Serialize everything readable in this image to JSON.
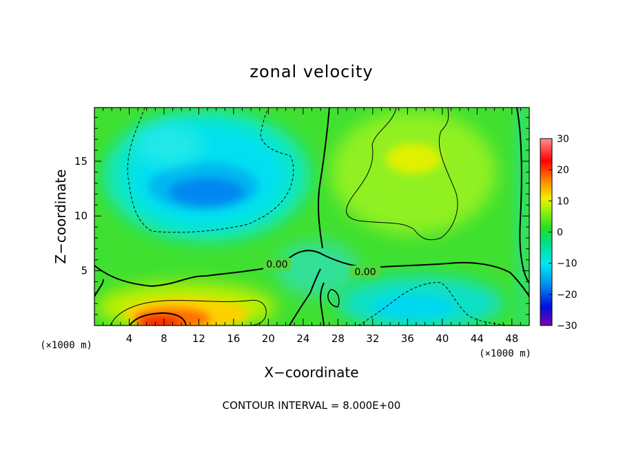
{
  "chart_data": {
    "type": "heatmap",
    "title": "zonal velocity",
    "xlabel": "X−coordinate",
    "ylabel": "Z−coordinate",
    "x_unit_left": "(×1000 m)",
    "x_unit_right": "(×1000 m)",
    "footer": "CONTOUR INTERVAL = 8.000E+00",
    "xlim": [
      0,
      50
    ],
    "ylim": [
      0,
      19.9
    ],
    "x_ticks": [
      "4",
      "8",
      "12",
      "16",
      "20",
      "24",
      "28",
      "32",
      "36",
      "40",
      "44",
      "48"
    ],
    "y_ticks": [
      "5",
      "10",
      "15"
    ],
    "contour_labels": [
      "0.00",
      "0.00"
    ],
    "contour_interval": 8.0,
    "colorbar": {
      "min": -30,
      "max": 30,
      "ticks": [
        "30",
        "20",
        "10",
        "0",
        "−10",
        "−20",
        "−30"
      ],
      "colors": [
        "#7a00b0",
        "#0010e0",
        "#0090f0",
        "#00e8f0",
        "#00e080",
        "#20e020",
        "#a0f010",
        "#f0f000",
        "#ff8000",
        "#ff0000",
        "#ff9090"
      ]
    },
    "features": [
      {
        "name": "negative core upper-left",
        "x": 12,
        "z": 12.5,
        "value": -12
      },
      {
        "name": "positive core lower-left",
        "x": 8,
        "z": 0.5,
        "value": 22
      },
      {
        "name": "positive region upper-right",
        "x": 36,
        "z": 15.5,
        "value": 10
      },
      {
        "name": "negative region lower-right",
        "x": 38,
        "z": 2.5,
        "value": -8
      }
    ]
  }
}
